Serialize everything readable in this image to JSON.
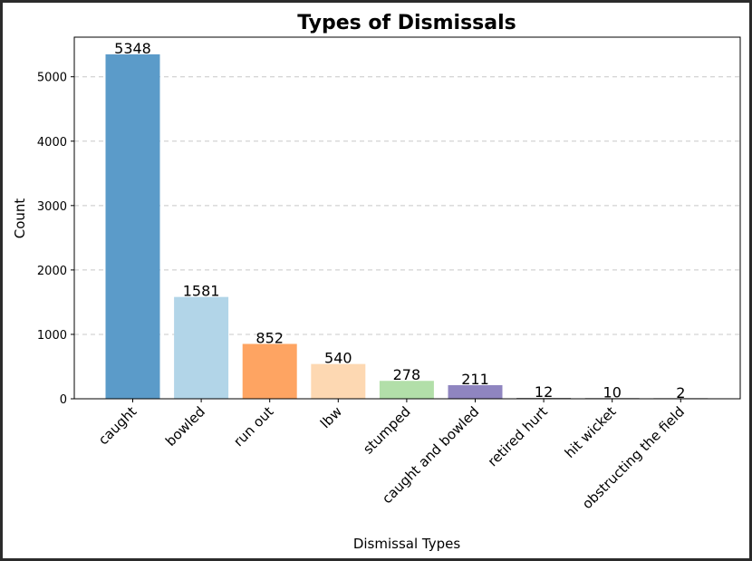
{
  "chart_data": {
    "type": "bar",
    "title": "Types of Dismissals",
    "xlabel": "Dismissal Types",
    "ylabel": "Count",
    "categories": [
      "caught",
      "bowled",
      "run out",
      "lbw",
      "stumped",
      "caught and bowled",
      "retired hurt",
      "hit wicket",
      "obstructing the field"
    ],
    "values": [
      5348,
      1581,
      852,
      540,
      278,
      211,
      12,
      10,
      2
    ],
    "colors": [
      "#5b9bc9",
      "#b2d5e8",
      "#fea462",
      "#fdd8b2",
      "#b2dfa9",
      "#8f85c0",
      "#636363",
      "#969696",
      "#bdbdbd"
    ],
    "ylim": [
      0,
      5615
    ],
    "yticks": [
      0,
      1000,
      2000,
      3000,
      4000,
      5000
    ],
    "grid": "y-dashed"
  }
}
